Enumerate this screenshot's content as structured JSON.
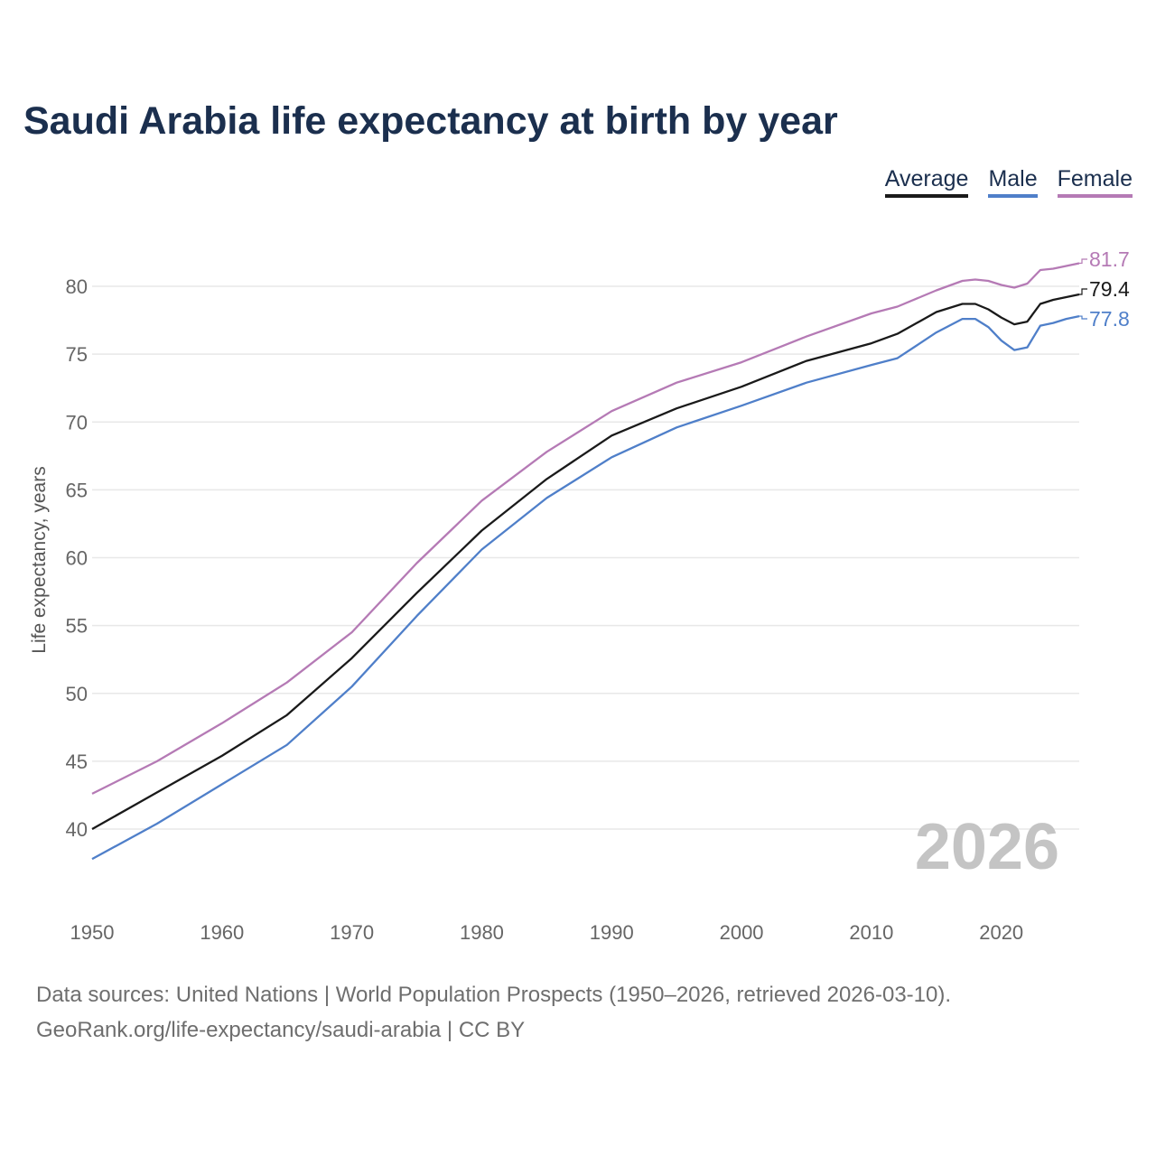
{
  "chart_data": {
    "type": "line",
    "title": "Saudi Arabia life expectancy at birth by year",
    "xlabel": "",
    "ylabel": "Life expectancy, years",
    "xlim": [
      1950,
      2026
    ],
    "ylim": [
      35.5,
      83
    ],
    "grid": true,
    "legend_position": "top-right",
    "x_ticks": [
      1950,
      1960,
      1970,
      1980,
      1990,
      2000,
      2010,
      2020
    ],
    "y_ticks": [
      40,
      45,
      50,
      55,
      60,
      65,
      70,
      75,
      80
    ],
    "x": [
      1950,
      1955,
      1960,
      1965,
      1970,
      1975,
      1980,
      1985,
      1990,
      1995,
      2000,
      2005,
      2010,
      2012,
      2015,
      2017,
      2018,
      2019,
      2020,
      2021,
      2022,
      2023,
      2024,
      2025,
      2026
    ],
    "series": [
      {
        "name": "Average",
        "color": "#1a1a1a",
        "end_label": "79.4",
        "values": [
          40.0,
          42.7,
          45.4,
          48.4,
          52.6,
          57.4,
          62.0,
          65.8,
          69.0,
          71.0,
          72.6,
          74.5,
          75.8,
          76.5,
          78.1,
          78.7,
          78.7,
          78.3,
          77.7,
          77.2,
          77.4,
          78.7,
          79.0,
          79.2,
          79.4
        ]
      },
      {
        "name": "Male",
        "color": "#4f7fc9",
        "end_label": "77.8",
        "values": [
          37.8,
          40.4,
          43.3,
          46.2,
          50.5,
          55.7,
          60.6,
          64.4,
          67.4,
          69.6,
          71.2,
          72.9,
          74.2,
          74.7,
          76.6,
          77.6,
          77.6,
          77.0,
          76.0,
          75.3,
          75.5,
          77.1,
          77.3,
          77.6,
          77.8
        ]
      },
      {
        "name": "Female",
        "color": "#b57ab5",
        "end_label": "81.7",
        "values": [
          42.6,
          45.0,
          47.8,
          50.8,
          54.5,
          59.6,
          64.2,
          67.8,
          70.8,
          72.9,
          74.4,
          76.3,
          78.0,
          78.5,
          79.7,
          80.4,
          80.5,
          80.4,
          80.1,
          79.9,
          80.2,
          81.2,
          81.3,
          81.5,
          81.7
        ]
      }
    ],
    "annotation": "2026"
  },
  "footer": {
    "sources": "Data sources: United Nations | World Population Prospects (1950–2026, retrieved 2026-03-10).",
    "credit": "GeoRank.org/life-expectancy/saudi-arabia | CC BY"
  }
}
